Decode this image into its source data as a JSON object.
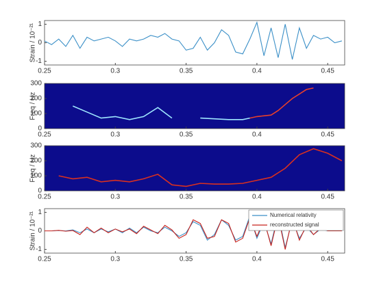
{
  "chart_data": [
    {
      "type": "line",
      "ylabel": "Strain / 10⁻²¹",
      "xlim": [
        0.25,
        0.462
      ],
      "xticks": [
        0.25,
        0.3,
        0.35,
        0.4,
        0.45
      ],
      "ylim": [
        -1.2,
        1.2
      ],
      "yticks": [
        -1,
        0,
        1
      ],
      "x": [
        0.25,
        0.255,
        0.26,
        0.265,
        0.27,
        0.275,
        0.28,
        0.285,
        0.29,
        0.295,
        0.3,
        0.305,
        0.31,
        0.315,
        0.32,
        0.325,
        0.33,
        0.335,
        0.34,
        0.345,
        0.35,
        0.355,
        0.36,
        0.365,
        0.37,
        0.375,
        0.38,
        0.385,
        0.39,
        0.395,
        0.4,
        0.405,
        0.41,
        0.415,
        0.42,
        0.425,
        0.43,
        0.435,
        0.44,
        0.445,
        0.45,
        0.455,
        0.46
      ],
      "series": [
        {
          "color": "#3a8fc7",
          "values": [
            0.1,
            -0.1,
            0.2,
            -0.2,
            0.4,
            -0.3,
            0.3,
            0.1,
            0.2,
            0.3,
            0.1,
            -0.2,
            0.2,
            0.1,
            0.2,
            0.4,
            0.3,
            0.5,
            0.2,
            0.1,
            -0.4,
            -0.3,
            0.3,
            -0.4,
            0.0,
            0.7,
            0.4,
            -0.5,
            -0.6,
            0.2,
            1.1,
            -0.7,
            0.8,
            -0.8,
            1.0,
            -0.9,
            0.8,
            -0.3,
            0.4,
            0.2,
            0.3,
            0.0,
            0.1
          ]
        }
      ]
    },
    {
      "type": "spectrogram",
      "ylabel": "Freq / Hz",
      "background": "#0c0c8c",
      "xlim": [
        0.25,
        0.462
      ],
      "xticks": [
        0.25,
        0.3,
        0.35,
        0.4,
        0.45
      ],
      "ylim": [
        0,
        300
      ],
      "yticks": [
        0,
        100,
        200,
        300
      ],
      "x": [
        0.27,
        0.28,
        0.29,
        0.3,
        0.31,
        0.32,
        0.33,
        0.34,
        0.35,
        0.36,
        0.37,
        0.38,
        0.39,
        0.395,
        0.4,
        0.405,
        0.41,
        0.415,
        0.42,
        0.425,
        0.43,
        0.435,
        0.44
      ],
      "series": [
        {
          "color": "#9fe8ff",
          "values": [
            150,
            110,
            70,
            80,
            60,
            80,
            140,
            70,
            null,
            70,
            65,
            60,
            60,
            70,
            null,
            null,
            null,
            null,
            null,
            null,
            null,
            null,
            null
          ]
        },
        {
          "color": "#e8402a",
          "values": [
            null,
            null,
            null,
            null,
            null,
            null,
            null,
            null,
            null,
            null,
            null,
            null,
            null,
            70,
            80,
            85,
            90,
            120,
            160,
            200,
            230,
            260,
            270
          ]
        }
      ]
    },
    {
      "type": "spectrogram",
      "ylabel": "Freq / Hz",
      "background": "#0c0c8c",
      "xlim": [
        0.25,
        0.462
      ],
      "xticks": [
        0.25,
        0.3,
        0.35,
        0.4,
        0.45
      ],
      "ylim": [
        0,
        300
      ],
      "yticks": [
        0,
        100,
        200,
        300
      ],
      "x": [
        0.26,
        0.27,
        0.28,
        0.29,
        0.3,
        0.31,
        0.32,
        0.33,
        0.34,
        0.35,
        0.36,
        0.37,
        0.38,
        0.39,
        0.4,
        0.41,
        0.42,
        0.43,
        0.44,
        0.45,
        0.46
      ],
      "series": [
        {
          "color": "#d9301f",
          "values": [
            100,
            80,
            90,
            60,
            70,
            60,
            80,
            110,
            40,
            30,
            50,
            45,
            45,
            50,
            70,
            90,
            150,
            240,
            280,
            250,
            200
          ]
        }
      ]
    },
    {
      "type": "line",
      "ylabel": "Strain / 10⁻²¹",
      "legend": "upper right",
      "xlim": [
        0.25,
        0.462
      ],
      "xticks": [
        0.25,
        0.3,
        0.35,
        0.4,
        0.45
      ],
      "ylim": [
        -1.2,
        1.2
      ],
      "yticks": [
        -1,
        0,
        1
      ],
      "x": [
        0.25,
        0.255,
        0.26,
        0.265,
        0.27,
        0.275,
        0.28,
        0.285,
        0.29,
        0.295,
        0.3,
        0.305,
        0.31,
        0.315,
        0.32,
        0.325,
        0.33,
        0.335,
        0.34,
        0.345,
        0.35,
        0.355,
        0.36,
        0.365,
        0.37,
        0.375,
        0.38,
        0.385,
        0.39,
        0.395,
        0.4,
        0.405,
        0.41,
        0.415,
        0.42,
        0.425,
        0.43,
        0.435,
        0.44,
        0.445,
        0.45,
        0.455,
        0.46
      ],
      "series": [
        {
          "name": "Numerical relativity",
          "color": "#3a8fc7",
          "values": [
            0,
            0,
            0.02,
            0,
            0.05,
            -0.1,
            0.1,
            -0.1,
            0.1,
            -0.05,
            0.1,
            -0.1,
            0.15,
            -0.1,
            0.2,
            0,
            -0.1,
            0.2,
            0,
            -0.3,
            -0.1,
            0.5,
            0.3,
            -0.5,
            -0.2,
            0.6,
            0.3,
            -0.5,
            -0.3,
            0.8,
            -0.4,
            0.5,
            -0.7,
            0.9,
            -0.9,
            0.6,
            -0.4,
            0.2,
            -0.2,
            0.1,
            0,
            0,
            0
          ]
        },
        {
          "name": "reconstructed signal",
          "color": "#c8201a",
          "values": [
            0,
            0,
            0.03,
            -0.02,
            0.02,
            -0.2,
            0.2,
            -0.1,
            0.15,
            -0.1,
            0.1,
            -0.05,
            0.1,
            -0.15,
            0.25,
            0.05,
            -0.15,
            0.3,
            0.05,
            -0.4,
            -0.2,
            0.6,
            0.4,
            -0.4,
            -0.3,
            0.6,
            0.4,
            -0.6,
            -0.4,
            0.7,
            -0.3,
            0.6,
            -0.8,
            0.8,
            -1.0,
            0.7,
            -0.5,
            0.3,
            -0.2,
            0.15,
            0,
            0,
            0
          ]
        }
      ]
    }
  ]
}
